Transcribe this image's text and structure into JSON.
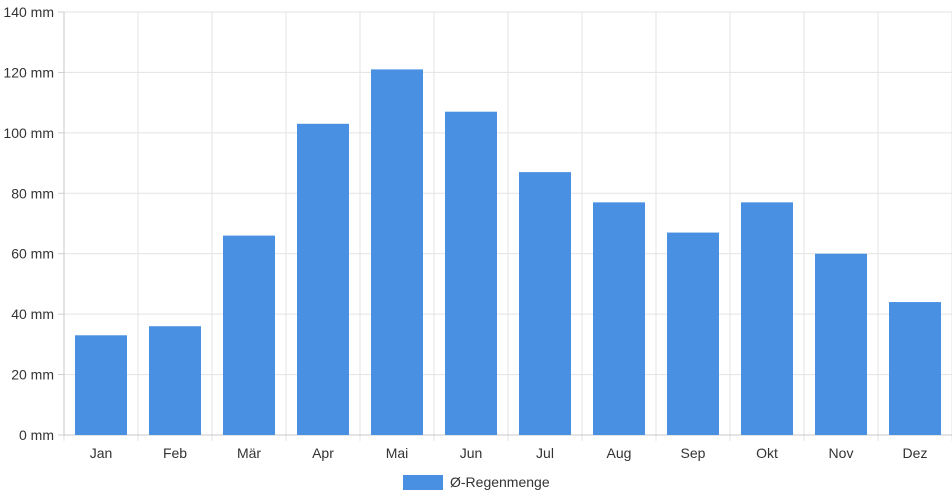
{
  "chart_data": {
    "type": "bar",
    "categories": [
      "Jan",
      "Feb",
      "Mär",
      "Apr",
      "Mai",
      "Jun",
      "Jul",
      "Aug",
      "Sep",
      "Okt",
      "Nov",
      "Dez"
    ],
    "series": [
      {
        "name": "Ø-Regenmenge",
        "values": [
          33,
          36,
          66,
          103,
          121,
          107,
          87,
          77,
          67,
          77,
          60,
          44
        ],
        "color": "#4a90e2"
      }
    ],
    "y_unit_suffix": " mm",
    "y_ticks": [
      0,
      20,
      40,
      60,
      80,
      100,
      120,
      140
    ],
    "ylim": [
      0,
      140
    ],
    "grid": true,
    "legend_position": "bottom-center",
    "title": "",
    "xlabel": "",
    "ylabel": ""
  }
}
